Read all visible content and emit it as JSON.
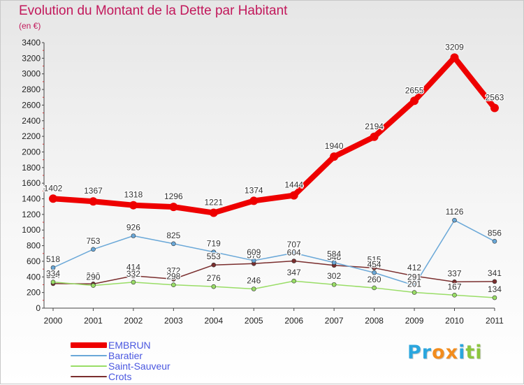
{
  "title": "Evolution du Montant de la Dette par Habitant",
  "subtitle": "(en €)",
  "logo": {
    "text": "Proxiti",
    "letters": [
      "P",
      "r",
      "o",
      "x",
      "i",
      "t",
      "i"
    ],
    "colors": [
      "#2ba6de",
      "#2ba6de",
      "#f28c1d",
      "#f28c1d",
      "#2ba6de",
      "#8cc63f",
      "#8cc63f"
    ]
  },
  "chart_data": {
    "type": "line",
    "x": [
      "2000",
      "2001",
      "2002",
      "2003",
      "2004",
      "2005",
      "2006",
      "2007",
      "2008",
      "2009",
      "2010",
      "2011"
    ],
    "ylim": [
      0,
      3400
    ],
    "yticks": [
      0,
      200,
      400,
      600,
      800,
      1000,
      1200,
      1400,
      1600,
      1800,
      2000,
      2200,
      2400,
      2600,
      2800,
      3000,
      3200,
      3400
    ],
    "grid": false,
    "legend_position": "bottom-left",
    "series": [
      {
        "name": "EMBRUN",
        "color": "#ee0000",
        "line_width": 8,
        "values": [
          1402,
          1367,
          1318,
          1296,
          1221,
          1374,
          1444,
          1940,
          2194,
          2655,
          3209,
          2563
        ],
        "labels": [
          "1402",
          "1367",
          "1318",
          "1296",
          "1221",
          "1374",
          "1444",
          "1940",
          "2194",
          "2655",
          "3209",
          "2563"
        ]
      },
      {
        "name": "Baratier",
        "color": "#6aa8d8",
        "line_width": 1.5,
        "values": [
          518,
          753,
          926,
          825,
          719,
          609,
          707,
          584,
          454,
          291,
          1126,
          856
        ],
        "labels": [
          "518",
          "753",
          "926",
          "825",
          "719",
          "609",
          "707",
          "584",
          "454",
          "291",
          "1126",
          "856"
        ]
      },
      {
        "name": "Saint-Sauveur",
        "color": "#99dd66",
        "line_width": 1.5,
        "values": [
          334,
          290,
          332,
          298,
          276,
          246,
          347,
          302,
          260,
          201,
          167,
          134
        ],
        "labels": [
          "334",
          "290",
          "332",
          "298",
          "276",
          "246",
          "347",
          "302",
          "260",
          "201",
          "167",
          "134"
        ]
      },
      {
        "name": "Crots",
        "color": "#7a2e2e",
        "line_width": 1.5,
        "values": [
          314,
          310,
          414,
          372,
          553,
          570,
          604,
          548,
          515,
          412,
          337,
          341
        ],
        "labels": [
          "314",
          "310",
          "414",
          "372",
          "553",
          "570",
          "604",
          "548",
          "515",
          "412",
          "337",
          "341"
        ]
      }
    ]
  }
}
